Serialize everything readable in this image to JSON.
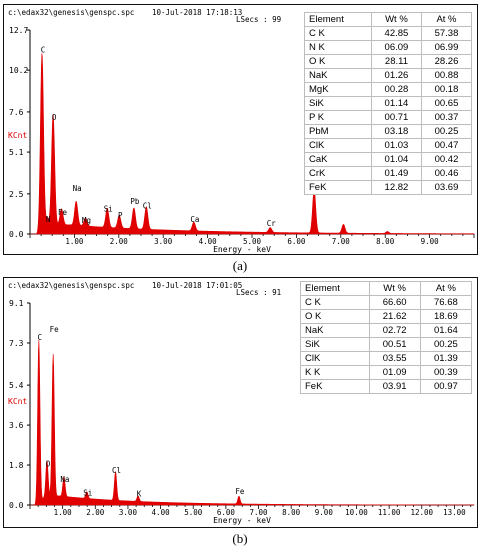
{
  "chart_data": [
    {
      "type": "line",
      "panel_caption": "(a)",
      "header": {
        "path": "c:\\edax32\\genesis\\genspc.spc",
        "datetime": "10-Jul-2018 17:18:13",
        "lsecs_label": "LSecs : 99"
      },
      "ylabel": "KCnt",
      "xlabel": "Energy - keV",
      "xlim": [
        0,
        10
      ],
      "ylim": [
        0,
        12.7
      ],
      "yticks": [
        "12.7",
        "10.2",
        "7.6",
        "5.1",
        "2.5",
        "0.0"
      ],
      "ytick_values": [
        12.7,
        10.2,
        7.6,
        5.1,
        2.5,
        0.0
      ],
      "xticks": [
        "1.00",
        "2.00",
        "3.00",
        "4.00",
        "5.00",
        "6.00",
        "7.00",
        "8.00",
        "9.00"
      ],
      "xtick_values": [
        1,
        2,
        3,
        4,
        5,
        6,
        7,
        8,
        9
      ],
      "peaks": [
        {
          "label": "C",
          "energy": 0.27,
          "height": 11.1,
          "label_dy": 0
        },
        {
          "label": "N",
          "energy": 0.39,
          "height": 0.55,
          "label_dy": 0
        },
        {
          "label": "O",
          "energy": 0.52,
          "height": 6.9,
          "label_dy": 0
        },
        {
          "label": "Fe",
          "energy": 0.71,
          "height": 1.0,
          "label_dy": 0
        },
        {
          "label": "Na",
          "energy": 1.04,
          "height": 1.5,
          "label_dy": -16
        },
        {
          "label": "Mg",
          "energy": 1.25,
          "height": 0.5,
          "label_dy": 0
        },
        {
          "label": "Si",
          "energy": 1.74,
          "height": 1.2,
          "label_dy": 0
        },
        {
          "label": "P",
          "energy": 2.01,
          "height": 0.8,
          "label_dy": 0
        },
        {
          "label": "Pb",
          "energy": 2.34,
          "height": 1.3,
          "label_dy": -6
        },
        {
          "label": "Cl",
          "energy": 2.62,
          "height": 1.4,
          "label_dy": 0
        },
        {
          "label": "Ca",
          "energy": 3.69,
          "height": 0.55,
          "label_dy": 0
        },
        {
          "label": "Cr",
          "energy": 5.41,
          "height": 0.3,
          "label_dy": 0
        },
        {
          "label": "Fe",
          "energy": 6.4,
          "height": 2.7,
          "label_dy": 0
        },
        {
          "label": "",
          "energy": 7.06,
          "height": 0.55,
          "label_dy": 0
        },
        {
          "label": "",
          "energy": 8.05,
          "height": 0.12,
          "label_dy": 0
        }
      ],
      "table": {
        "headers": [
          "Element",
          "Wt %",
          "At %"
        ],
        "rows": [
          [
            "C K",
            "42.85",
            "57.38"
          ],
          [
            "N K",
            "06.09",
            "06.99"
          ],
          [
            "O K",
            "28.11",
            "28.26"
          ],
          [
            "NaK",
            "01.26",
            "00.88"
          ],
          [
            "MgK",
            "00.28",
            "00.18"
          ],
          [
            "SiK",
            "01.14",
            "00.65"
          ],
          [
            "P K",
            "00.71",
            "00.37"
          ],
          [
            "PbM",
            "03.18",
            "00.25"
          ],
          [
            "ClK",
            "01.03",
            "00.47"
          ],
          [
            "CaK",
            "01.04",
            "00.42"
          ],
          [
            "CrK",
            "01.49",
            "00.46"
          ],
          [
            "FeK",
            "12.82",
            "03.69"
          ]
        ]
      }
    },
    {
      "type": "line",
      "panel_caption": "(b)",
      "header": {
        "path": "c:\\edax32\\genesis\\genspc.spc",
        "datetime": "10-Jul-2018 17:01:05",
        "lsecs_label": "LSecs : 91"
      },
      "ylabel": "KCnt",
      "xlabel": "Energy - keV",
      "xlim": [
        0,
        13.6
      ],
      "ylim": [
        0,
        9.1
      ],
      "yticks": [
        "9.1",
        "7.3",
        "5.4",
        "3.6",
        "1.8",
        "0.0"
      ],
      "ytick_values": [
        9.1,
        7.3,
        5.4,
        3.6,
        1.8,
        0.0
      ],
      "xticks": [
        "1.00",
        "2.00",
        "3.00",
        "4.00",
        "5.00",
        "6.00",
        "7.00",
        "8.00",
        "9.00",
        "10.00",
        "11.00",
        "12.00",
        "13.00"
      ],
      "xtick_values": [
        1,
        2,
        3,
        4,
        5,
        6,
        7,
        8,
        9,
        10,
        11,
        12,
        13
      ],
      "peaks": [
        {
          "label": "C",
          "energy": 0.27,
          "height": 7.3,
          "label_dy": 0
        },
        {
          "label": "O",
          "energy": 0.52,
          "height": 1.6,
          "label_dy": 0
        },
        {
          "label": "Fe",
          "energy": 0.71,
          "height": 6.4,
          "label_dy": -28
        },
        {
          "label": "Na",
          "energy": 1.04,
          "height": 0.9,
          "label_dy": 0
        },
        {
          "label": "Si",
          "energy": 1.74,
          "height": 0.3,
          "label_dy": 0
        },
        {
          "label": "Cl",
          "energy": 2.62,
          "height": 1.3,
          "label_dy": 0
        },
        {
          "label": "K",
          "energy": 3.31,
          "height": 0.25,
          "label_dy": 0
        },
        {
          "label": "Fe",
          "energy": 6.4,
          "height": 0.35,
          "label_dy": 0
        }
      ],
      "table": {
        "headers": [
          "Element",
          "Wt %",
          "At %"
        ],
        "rows": [
          [
            "C K",
            "66.60",
            "76.68"
          ],
          [
            "O K",
            "21.62",
            "18.69"
          ],
          [
            "NaK",
            "02.72",
            "01.64"
          ],
          [
            "SiK",
            "00.51",
            "00.25"
          ],
          [
            "ClK",
            "03.55",
            "01.39"
          ],
          [
            "K K",
            "01.09",
            "00.39"
          ],
          [
            "FeK",
            "03.91",
            "00.97"
          ]
        ]
      }
    }
  ],
  "colors": {
    "spectrum": "#e00000",
    "text": "#000000",
    "kcnt": "#e00000"
  }
}
